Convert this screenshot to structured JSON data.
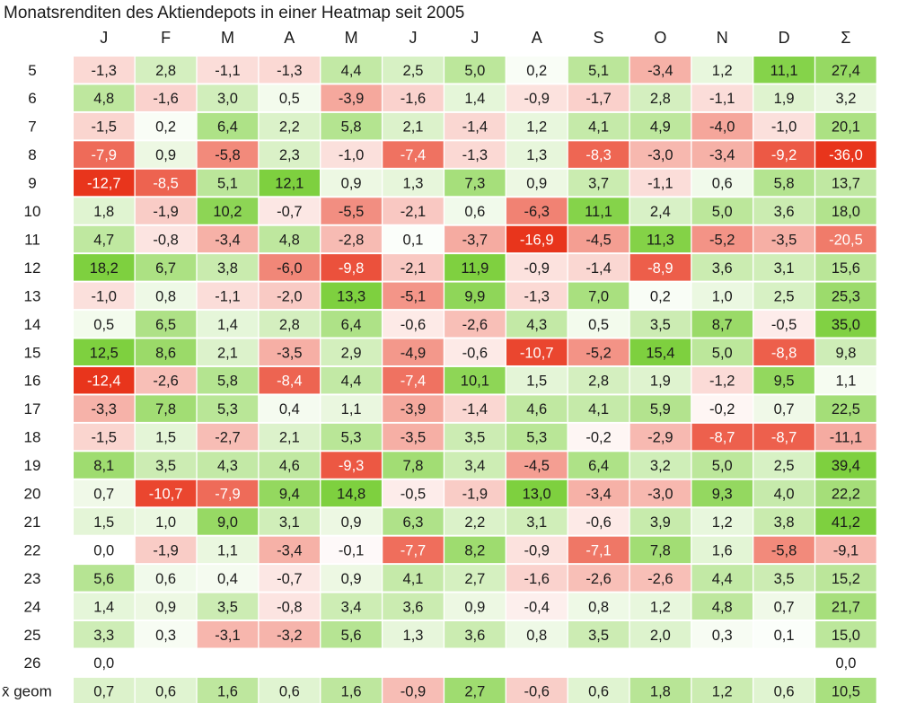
{
  "chart_data": {
    "type": "heatmap",
    "title": "Monatsrenditen des Aktiendepots in einer Heatmap seit 2005",
    "columns": [
      "J",
      "F",
      "M",
      "A",
      "M",
      "J",
      "J",
      "A",
      "S",
      "O",
      "N",
      "D",
      "Σ"
    ],
    "rows": [
      {
        "label": "5",
        "values": [
          "-1,3",
          "2,8",
          "-1,1",
          "-1,3",
          "4,4",
          "2,5",
          "5,0",
          "0,2",
          "5,1",
          "-3,4",
          "1,2",
          "11,1",
          "27,4"
        ]
      },
      {
        "label": "6",
        "values": [
          "4,8",
          "-1,6",
          "3,0",
          "0,5",
          "-3,9",
          "-1,6",
          "1,4",
          "-0,9",
          "-1,7",
          "2,8",
          "-1,1",
          "1,9",
          "3,2"
        ]
      },
      {
        "label": "7",
        "values": [
          "-1,5",
          "0,2",
          "6,4",
          "2,2",
          "5,8",
          "2,1",
          "-1,4",
          "1,2",
          "4,1",
          "4,9",
          "-4,0",
          "-1,0",
          "20,1"
        ]
      },
      {
        "label": "8",
        "values": [
          "-7,9",
          "0,9",
          "-5,8",
          "2,3",
          "-1,0",
          "-7,4",
          "-1,3",
          "1,3",
          "-8,3",
          "-3,0",
          "-3,4",
          "-9,2",
          "-36,0"
        ]
      },
      {
        "label": "9",
        "values": [
          "-12,7",
          "-8,5",
          "5,1",
          "12,1",
          "0,9",
          "1,3",
          "7,3",
          "0,9",
          "3,7",
          "-1,1",
          "0,6",
          "5,8",
          "13,7"
        ]
      },
      {
        "label": "10",
        "values": [
          "1,8",
          "-1,9",
          "10,2",
          "-0,7",
          "-5,5",
          "-2,1",
          "0,6",
          "-6,3",
          "11,1",
          "2,4",
          "5,0",
          "3,6",
          "18,0"
        ]
      },
      {
        "label": "11",
        "values": [
          "4,7",
          "-0,8",
          "-3,4",
          "4,8",
          "-2,8",
          "0,1",
          "-3,7",
          "-16,9",
          "-4,5",
          "11,3",
          "-5,2",
          "-3,5",
          "-20,5"
        ]
      },
      {
        "label": "12",
        "values": [
          "18,2",
          "6,7",
          "3,8",
          "-6,0",
          "-9,8",
          "-2,1",
          "11,9",
          "-0,9",
          "-1,4",
          "-8,9",
          "3,6",
          "3,1",
          "15,6"
        ]
      },
      {
        "label": "13",
        "values": [
          "-1,0",
          "0,8",
          "-1,1",
          "-2,0",
          "13,3",
          "-5,1",
          "9,9",
          "-1,3",
          "7,0",
          "0,2",
          "1,0",
          "2,5",
          "25,3"
        ]
      },
      {
        "label": "14",
        "values": [
          "0,5",
          "6,5",
          "1,4",
          "2,8",
          "6,4",
          "-0,6",
          "-2,6",
          "4,3",
          "0,5",
          "3,5",
          "8,7",
          "-0,5",
          "35,0"
        ]
      },
      {
        "label": "15",
        "values": [
          "12,5",
          "8,6",
          "2,1",
          "-3,5",
          "2,9",
          "-4,9",
          "-0,6",
          "-10,7",
          "-5,2",
          "15,4",
          "5,0",
          "-8,8",
          "9,8"
        ]
      },
      {
        "label": "16",
        "values": [
          "-12,4",
          "-2,6",
          "5,8",
          "-8,4",
          "4,4",
          "-7,4",
          "10,1",
          "1,5",
          "2,8",
          "1,9",
          "-1,2",
          "9,5",
          "1,1"
        ]
      },
      {
        "label": "17",
        "values": [
          "-3,3",
          "7,8",
          "5,3",
          "0,4",
          "1,1",
          "-3,9",
          "-1,4",
          "4,6",
          "4,1",
          "5,9",
          "-0,2",
          "0,7",
          "22,5"
        ]
      },
      {
        "label": "18",
        "values": [
          "-1,5",
          "1,5",
          "-2,7",
          "2,1",
          "5,3",
          "-3,5",
          "3,5",
          "5,3",
          "-0,2",
          "-2,9",
          "-8,7",
          "-8,7",
          "-11,1"
        ]
      },
      {
        "label": "19",
        "values": [
          "8,1",
          "3,5",
          "4,3",
          "4,6",
          "-9,3",
          "7,8",
          "3,4",
          "-4,5",
          "6,4",
          "3,2",
          "5,0",
          "2,5",
          "39,4"
        ]
      },
      {
        "label": "20",
        "values": [
          "0,7",
          "-10,7",
          "-7,9",
          "9,4",
          "14,8",
          "-0,5",
          "-1,9",
          "13,0",
          "-3,4",
          "-3,0",
          "9,3",
          "4,0",
          "22,2"
        ]
      },
      {
        "label": "21",
        "values": [
          "1,5",
          "1,0",
          "9,0",
          "3,1",
          "0,9",
          "6,3",
          "2,2",
          "3,1",
          "-0,6",
          "3,9",
          "1,2",
          "3,8",
          "41,2"
        ]
      },
      {
        "label": "22",
        "values": [
          "0,0",
          "-1,9",
          "1,1",
          "-3,4",
          "-0,1",
          "-7,7",
          "8,2",
          "-0,9",
          "-7,1",
          "7,8",
          "1,6",
          "-5,8",
          "-9,1"
        ]
      },
      {
        "label": "23",
        "values": [
          "5,6",
          "0,6",
          "0,4",
          "-0,7",
          "0,9",
          "4,1",
          "2,7",
          "-1,6",
          "-2,6",
          "-2,6",
          "4,4",
          "3,5",
          "15,2"
        ]
      },
      {
        "label": "24",
        "values": [
          "1,4",
          "0,9",
          "3,5",
          "-0,8",
          "3,4",
          "3,6",
          "0,9",
          "-0,4",
          "0,8",
          "1,2",
          "4,8",
          "0,7",
          "21,7"
        ]
      },
      {
        "label": "25",
        "values": [
          "3,3",
          "0,3",
          "-3,1",
          "-3,2",
          "5,6",
          "1,3",
          "3,6",
          "0,8",
          "3,5",
          "2,0",
          "0,3",
          "0,1",
          "15,0"
        ]
      },
      {
        "label": "26",
        "values": [
          "0,0",
          "",
          "",
          "",
          "",
          "",
          "",
          "",
          "",
          "",
          "",
          "",
          "0,0"
        ]
      },
      {
        "label": "x̄ geom",
        "values": [
          "0,7",
          "0,6",
          "1,6",
          "0,6",
          "1,6",
          "-0,9",
          "2,7",
          "-0,6",
          "0,6",
          "1,8",
          "1,2",
          "0,6",
          "10,5"
        ]
      }
    ],
    "colors": {
      "positive": "#7ed03f",
      "negative": "#e8351c",
      "neutral": "#ffffff",
      "text": "#1a1a1a",
      "text_on_dark": "#ffffff"
    }
  }
}
